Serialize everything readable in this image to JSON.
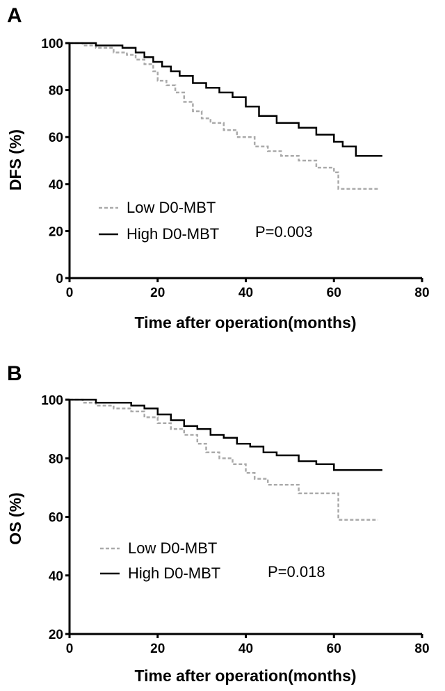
{
  "chart_data": [
    {
      "panel": "A",
      "type": "line",
      "title": "",
      "xlabel": "Time after operation(months)",
      "ylabel": "DFS (%)",
      "xlim": [
        0,
        80
      ],
      "ylim": [
        0,
        100
      ],
      "xticks": [
        0,
        20,
        40,
        60,
        80
      ],
      "yticks": [
        0,
        20,
        40,
        60,
        80,
        100
      ],
      "annotation": "P=0.003",
      "legend_position": "bottom-left",
      "series": [
        {
          "name": "Low D0-MBT",
          "style": "dashed",
          "color": "#aaaaaa",
          "x": [
            0,
            3,
            6,
            10,
            13,
            15,
            17,
            19,
            20,
            22,
            24,
            26,
            28,
            30,
            32,
            35,
            38,
            42,
            45,
            48,
            52,
            56,
            60,
            61,
            70
          ],
          "y": [
            100,
            99,
            98,
            96,
            95,
            93,
            91,
            88,
            84,
            82,
            79,
            75,
            71,
            68,
            66,
            63,
            60,
            56,
            54,
            52,
            50,
            47,
            45,
            38,
            38
          ]
        },
        {
          "name": "High D0-MBT",
          "style": "solid",
          "color": "#000000",
          "x": [
            0,
            3,
            6,
            9,
            12,
            15,
            17,
            19,
            21,
            23,
            25,
            28,
            31,
            34,
            37,
            40,
            43,
            47,
            52,
            56,
            60,
            62,
            65,
            71
          ],
          "y": [
            100,
            100,
            99,
            99,
            98,
            96,
            94,
            92,
            90,
            88,
            86,
            83,
            81,
            79,
            77,
            73,
            69,
            66,
            64,
            61,
            58,
            56,
            52,
            52
          ]
        }
      ]
    },
    {
      "panel": "B",
      "type": "line",
      "title": "",
      "xlabel": "Time after operation(months)",
      "ylabel": "OS (%)",
      "xlim": [
        0,
        80
      ],
      "ylim": [
        20,
        100
      ],
      "xticks": [
        0,
        20,
        40,
        60,
        80
      ],
      "yticks": [
        20,
        40,
        60,
        80,
        100
      ],
      "annotation": "P=0.018",
      "legend_position": "bottom-left",
      "series": [
        {
          "name": "Low D0-MBT",
          "style": "dashed",
          "color": "#aaaaaa",
          "x": [
            0,
            3,
            6,
            10,
            14,
            17,
            20,
            23,
            26,
            29,
            31,
            34,
            37,
            40,
            42,
            45,
            52,
            55,
            60,
            61,
            70
          ],
          "y": [
            100,
            99,
            98,
            97,
            96,
            94,
            92,
            90,
            88,
            85,
            82,
            80,
            78,
            75,
            73,
            71,
            68,
            68,
            68,
            59,
            59
          ]
        },
        {
          "name": "High D0-MBT",
          "style": "solid",
          "color": "#000000",
          "x": [
            0,
            3,
            6,
            10,
            14,
            17,
            20,
            23,
            26,
            29,
            32,
            35,
            38,
            41,
            44,
            47,
            52,
            56,
            60,
            71
          ],
          "y": [
            100,
            100,
            99,
            99,
            98,
            97,
            95,
            93,
            91,
            90,
            88,
            87,
            85,
            84,
            82,
            81,
            79,
            78,
            76,
            76
          ]
        }
      ]
    }
  ]
}
